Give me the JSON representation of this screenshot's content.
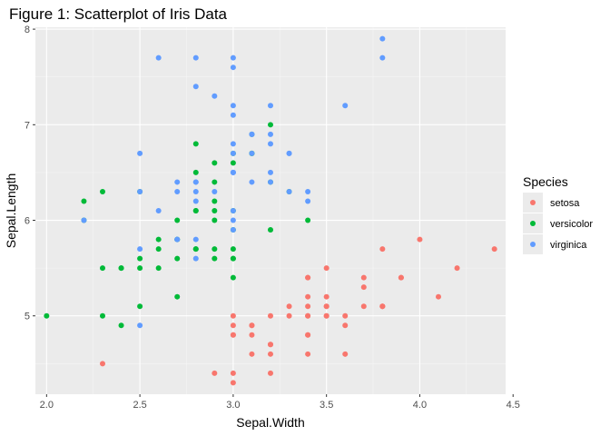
{
  "chart_data": {
    "type": "scatter",
    "title": "Figure 1: Scatterplot of Iris Data",
    "xlabel": "Sepal.Width",
    "ylabel": "Sepal.Length",
    "xlim": [
      1.94,
      4.46
    ],
    "ylim": [
      4.18,
      8.02
    ],
    "xticks": [
      2.0,
      2.5,
      3.0,
      3.5,
      4.0,
      4.5
    ],
    "xtick_labels": [
      "2.0",
      "2.5",
      "3.0",
      "3.5",
      "4.0",
      "4.5"
    ],
    "yticks": [
      5,
      6,
      7,
      8
    ],
    "ytick_labels": [
      "5",
      "6",
      "7",
      "8"
    ],
    "grid": true,
    "legend": {
      "title": "Species",
      "placement": "right",
      "entries": [
        "setosa",
        "versicolor",
        "virginica"
      ]
    },
    "series": [
      {
        "name": "setosa",
        "color": "#F8766D",
        "points": [
          [
            3.5,
            5.1
          ],
          [
            3.0,
            4.9
          ],
          [
            3.2,
            4.7
          ],
          [
            3.1,
            4.6
          ],
          [
            3.6,
            5.0
          ],
          [
            3.9,
            5.4
          ],
          [
            3.4,
            4.6
          ],
          [
            3.4,
            5.0
          ],
          [
            2.9,
            4.4
          ],
          [
            3.1,
            4.9
          ],
          [
            3.7,
            5.4
          ],
          [
            3.4,
            4.8
          ],
          [
            3.0,
            4.8
          ],
          [
            3.0,
            4.3
          ],
          [
            4.0,
            5.8
          ],
          [
            4.4,
            5.7
          ],
          [
            3.9,
            5.4
          ],
          [
            3.5,
            5.1
          ],
          [
            3.8,
            5.7
          ],
          [
            3.8,
            5.1
          ],
          [
            3.4,
            5.4
          ],
          [
            3.7,
            5.1
          ],
          [
            3.6,
            4.6
          ],
          [
            3.3,
            5.1
          ],
          [
            3.4,
            4.8
          ],
          [
            3.0,
            5.0
          ],
          [
            3.4,
            5.0
          ],
          [
            3.5,
            5.2
          ],
          [
            3.4,
            5.2
          ],
          [
            3.2,
            4.7
          ],
          [
            3.1,
            4.8
          ],
          [
            3.4,
            5.4
          ],
          [
            4.1,
            5.2
          ],
          [
            4.2,
            5.5
          ],
          [
            3.1,
            4.9
          ],
          [
            3.2,
            5.0
          ],
          [
            3.5,
            5.5
          ],
          [
            3.6,
            4.9
          ],
          [
            3.0,
            4.4
          ],
          [
            3.4,
            5.1
          ],
          [
            3.5,
            5.0
          ],
          [
            2.3,
            4.5
          ],
          [
            3.2,
            4.4
          ],
          [
            3.5,
            5.0
          ],
          [
            3.8,
            5.1
          ],
          [
            3.0,
            4.8
          ],
          [
            3.8,
            5.1
          ],
          [
            3.2,
            4.6
          ],
          [
            3.7,
            5.3
          ],
          [
            3.3,
            5.0
          ]
        ]
      },
      {
        "name": "versicolor",
        "color": "#00BA38",
        "points": [
          [
            3.2,
            7.0
          ],
          [
            3.2,
            6.4
          ],
          [
            3.1,
            6.9
          ],
          [
            2.3,
            5.5
          ],
          [
            2.8,
            6.5
          ],
          [
            2.8,
            5.7
          ],
          [
            3.3,
            6.3
          ],
          [
            2.4,
            4.9
          ],
          [
            2.9,
            6.6
          ],
          [
            2.7,
            5.2
          ],
          [
            2.0,
            5.0
          ],
          [
            3.0,
            5.9
          ],
          [
            2.2,
            6.0
          ],
          [
            2.9,
            6.1
          ],
          [
            2.9,
            5.6
          ],
          [
            3.1,
            6.7
          ],
          [
            3.0,
            5.6
          ],
          [
            2.7,
            5.8
          ],
          [
            2.2,
            6.2
          ],
          [
            2.5,
            5.6
          ],
          [
            3.2,
            5.9
          ],
          [
            2.8,
            6.1
          ],
          [
            2.5,
            6.3
          ],
          [
            2.8,
            6.1
          ],
          [
            2.9,
            6.4
          ],
          [
            3.0,
            6.6
          ],
          [
            2.8,
            6.8
          ],
          [
            3.0,
            6.7
          ],
          [
            2.9,
            6.0
          ],
          [
            2.6,
            5.7
          ],
          [
            2.4,
            5.5
          ],
          [
            2.4,
            5.5
          ],
          [
            2.7,
            5.8
          ],
          [
            2.7,
            6.0
          ],
          [
            3.0,
            5.4
          ],
          [
            3.4,
            6.0
          ],
          [
            3.1,
            6.7
          ],
          [
            2.3,
            6.3
          ],
          [
            3.0,
            5.6
          ],
          [
            2.5,
            5.5
          ],
          [
            2.6,
            5.5
          ],
          [
            3.0,
            6.1
          ],
          [
            2.6,
            5.8
          ],
          [
            2.3,
            5.0
          ],
          [
            2.7,
            5.6
          ],
          [
            3.0,
            5.7
          ],
          [
            2.9,
            5.7
          ],
          [
            2.9,
            6.2
          ],
          [
            2.5,
            5.1
          ],
          [
            2.8,
            5.7
          ]
        ]
      },
      {
        "name": "virginica",
        "color": "#619CFF",
        "points": [
          [
            3.3,
            6.3
          ],
          [
            2.7,
            5.8
          ],
          [
            3.0,
            7.1
          ],
          [
            2.9,
            6.3
          ],
          [
            3.0,
            6.5
          ],
          [
            3.0,
            7.6
          ],
          [
            2.5,
            4.9
          ],
          [
            2.9,
            7.3
          ],
          [
            2.5,
            6.7
          ],
          [
            3.6,
            7.2
          ],
          [
            3.2,
            6.5
          ],
          [
            2.7,
            6.4
          ],
          [
            3.0,
            6.8
          ],
          [
            2.5,
            5.7
          ],
          [
            2.8,
            5.8
          ],
          [
            3.2,
            6.4
          ],
          [
            3.0,
            6.5
          ],
          [
            3.8,
            7.7
          ],
          [
            2.6,
            7.7
          ],
          [
            2.2,
            6.0
          ],
          [
            3.2,
            6.9
          ],
          [
            2.8,
            5.6
          ],
          [
            2.8,
            7.7
          ],
          [
            2.7,
            6.3
          ],
          [
            3.3,
            6.7
          ],
          [
            3.2,
            7.2
          ],
          [
            2.8,
            6.2
          ],
          [
            3.0,
            6.1
          ],
          [
            2.8,
            6.4
          ],
          [
            3.0,
            7.2
          ],
          [
            2.8,
            7.4
          ],
          [
            3.8,
            7.9
          ],
          [
            2.8,
            6.4
          ],
          [
            2.8,
            6.3
          ],
          [
            2.6,
            6.1
          ],
          [
            3.0,
            7.7
          ],
          [
            3.4,
            6.3
          ],
          [
            3.1,
            6.4
          ],
          [
            3.0,
            6.0
          ],
          [
            3.1,
            6.9
          ],
          [
            3.1,
            6.7
          ],
          [
            3.1,
            6.9
          ],
          [
            2.7,
            5.8
          ],
          [
            3.2,
            6.8
          ],
          [
            3.3,
            6.7
          ],
          [
            3.0,
            6.7
          ],
          [
            2.5,
            6.3
          ],
          [
            3.0,
            6.5
          ],
          [
            3.4,
            6.2
          ],
          [
            3.0,
            5.9
          ]
        ]
      }
    ]
  }
}
